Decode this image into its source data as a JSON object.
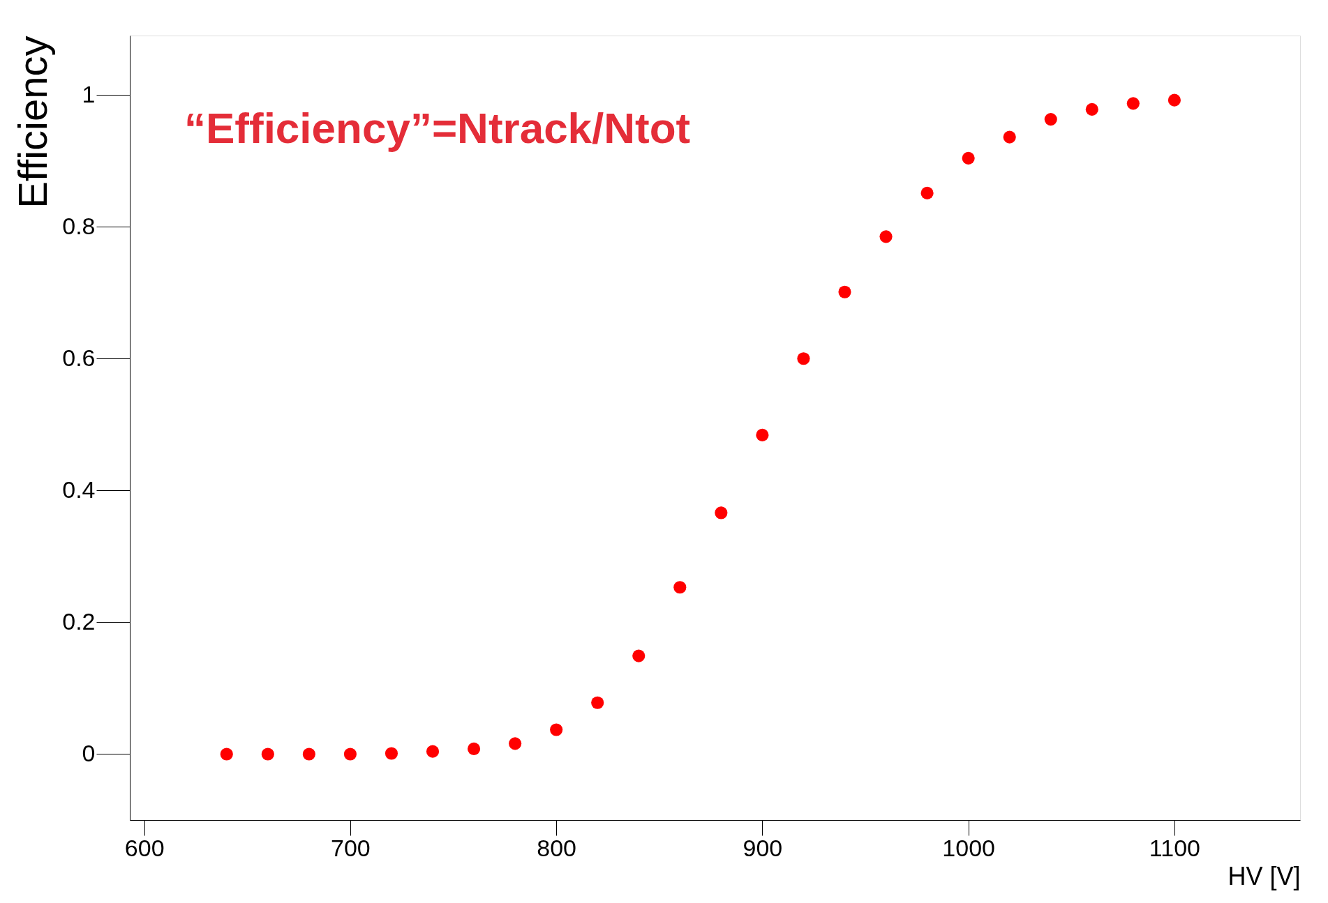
{
  "chart_data": {
    "type": "scatter",
    "xlabel": "HV [V]",
    "ylabel": "Efficiency",
    "annotations": [
      "“Efficiency”=Ntrack/Ntot"
    ],
    "x": [
      640,
      660,
      680,
      700,
      720,
      740,
      760,
      780,
      800,
      820,
      840,
      860,
      880,
      900,
      920,
      940,
      960,
      980,
      1000,
      1020,
      1040,
      1060,
      1080,
      1100
    ],
    "series": [
      {
        "color": "#ff0000",
        "values": [
          0,
          0,
          0,
          0,
          0.001,
          0.004,
          0.008,
          0.016,
          0.037,
          0.078,
          0.149,
          0.253,
          0.366,
          0.484,
          0.6,
          0.701,
          0.785,
          0.851,
          0.904,
          0.936,
          0.963,
          0.978,
          0.987,
          0.992
        ]
      }
    ],
    "xlim": [
      593,
      1161
    ],
    "ylim": [
      -0.1,
      1.09
    ],
    "xticks": [
      600,
      700,
      800,
      900,
      1000,
      1100
    ],
    "yticks": [
      0,
      0.2,
      0.4,
      0.6,
      0.8,
      1
    ],
    "marker": "circle",
    "grid": false,
    "legend": false
  }
}
